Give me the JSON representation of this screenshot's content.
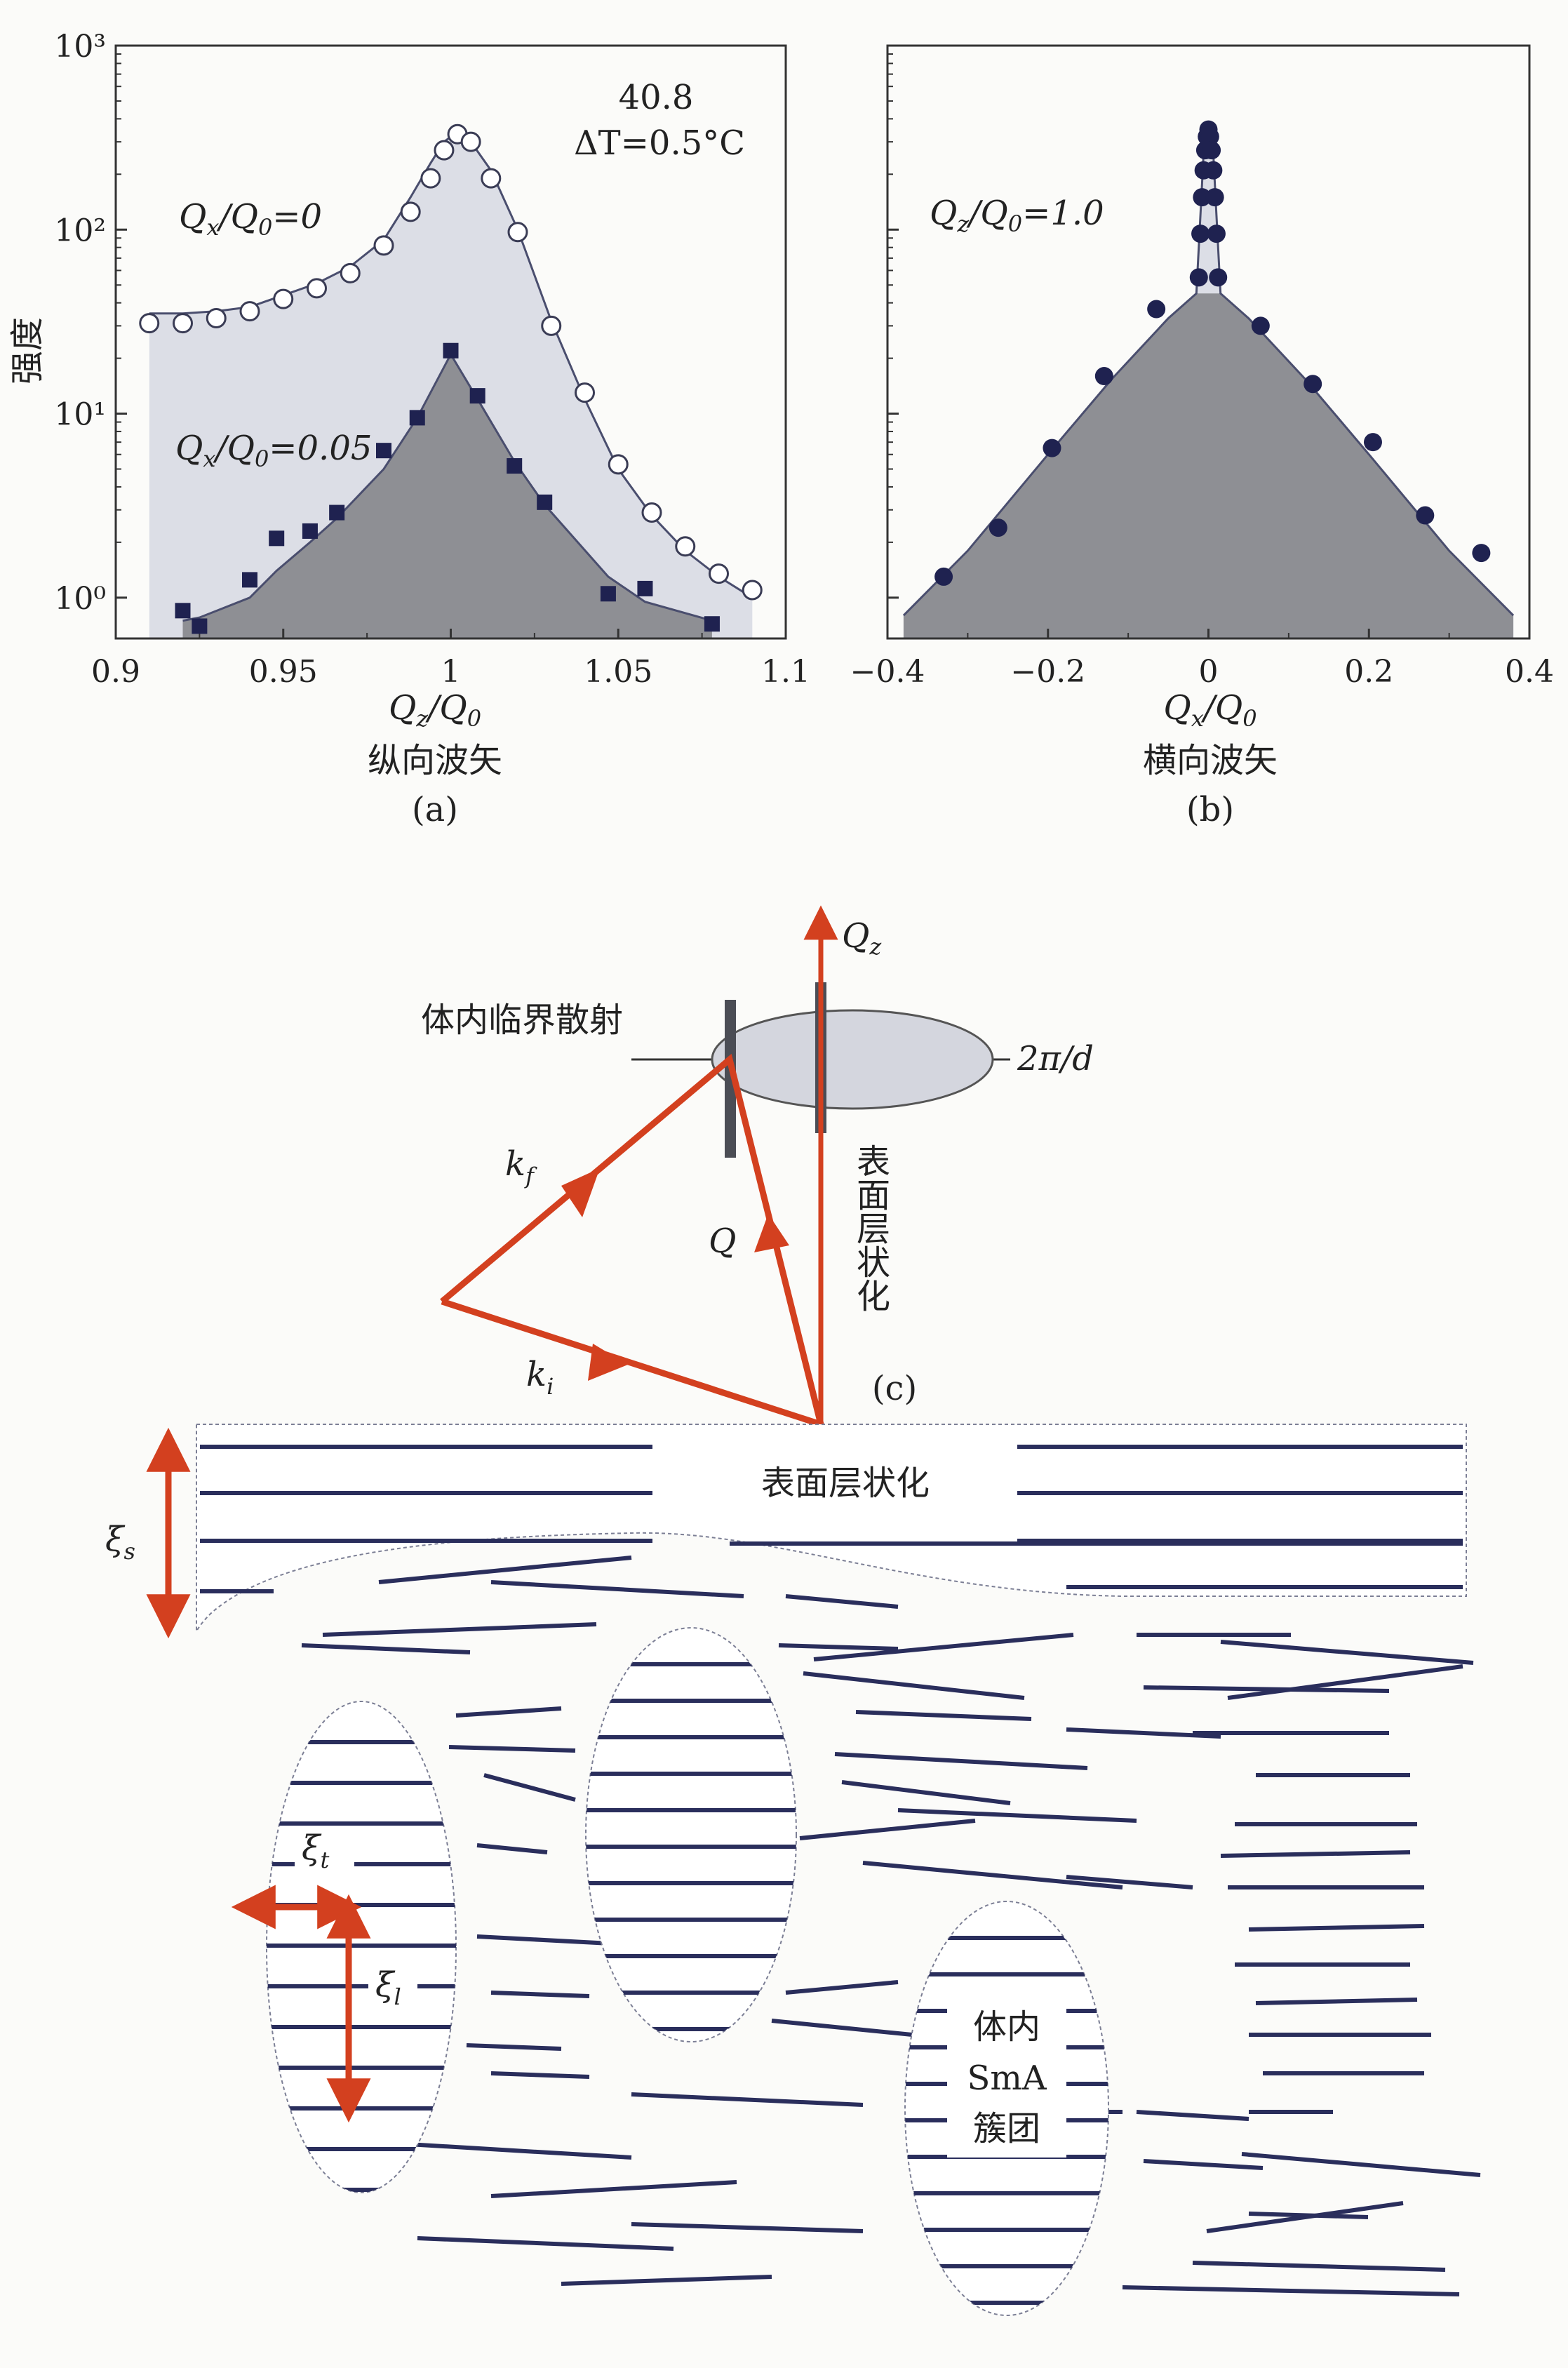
{
  "chart_data": [
    {
      "type": "scatter",
      "panel_label": "(a)",
      "xlabel_math": "Q_z/Q_0",
      "xlabel_text": "纵向波矢",
      "ylabel": "强度",
      "yscale": "log",
      "xlim": [
        0.9,
        1.1
      ],
      "ylim": [
        0.6,
        1000
      ],
      "x_ticks": [
        "0.9",
        "0.95",
        "1",
        "1.05",
        "1.1"
      ],
      "y_ticks": [
        "10⁰",
        "10¹",
        "10²",
        "10³"
      ],
      "annotation_line1": "40.8",
      "annotation_line2": "ΔT=0.5°C",
      "series": [
        {
          "name": "Qx/Q0=0",
          "label": "Qx/Q0=0",
          "marker": "open-circle",
          "x": [
            0.91,
            0.92,
            0.93,
            0.94,
            0.95,
            0.96,
            0.97,
            0.98,
            0.988,
            0.994,
            0.998,
            1.002,
            1.006,
            1.012,
            1.02,
            1.03,
            1.04,
            1.05,
            1.06,
            1.07,
            1.08,
            1.09
          ],
          "y": [
            31,
            31,
            33,
            36,
            42,
            48,
            58,
            82,
            125,
            190,
            270,
            330,
            300,
            190,
            97,
            30,
            13,
            5.3,
            2.9,
            1.9,
            1.35,
            1.1
          ],
          "fit_y": [
            35,
            35,
            36,
            38,
            44,
            51,
            63,
            88,
            150,
            230,
            300,
            340,
            300,
            210,
            100,
            32,
            12,
            5.0,
            2.8,
            1.8,
            1.3,
            1.0
          ]
        },
        {
          "name": "Qx/Q0=0.05",
          "label": "Qx/Q0=0.05",
          "marker": "filled-square",
          "x": [
            0.92,
            0.925,
            0.94,
            0.948,
            0.958,
            0.966,
            0.98,
            0.99,
            1.0,
            1.008,
            1.019,
            1.028,
            1.047,
            1.058,
            1.078
          ],
          "y": [
            0.85,
            0.7,
            1.25,
            2.1,
            2.3,
            2.9,
            6.3,
            9.5,
            22,
            12.5,
            5.2,
            3.3,
            1.05,
            1.12,
            0.72
          ],
          "fit_y": [
            0.75,
            0.78,
            1.0,
            1.4,
            2.0,
            2.7,
            5.0,
            9.5,
            21,
            12,
            5.5,
            3.2,
            1.3,
            0.95,
            0.75
          ]
        }
      ]
    },
    {
      "type": "scatter",
      "panel_label": "(b)",
      "xlabel_math": "Q_x/Q_0",
      "xlabel_text": "横向波矢",
      "yscale": "log",
      "xlim": [
        -0.4,
        0.4
      ],
      "ylim": [
        0.6,
        1000
      ],
      "x_ticks": [
        "−0.4",
        "−0.2",
        "0",
        "0.2",
        "0.4"
      ],
      "annotation": "Qz/Q0=1.0",
      "series": [
        {
          "name": "Qz/Q0=1.0",
          "marker": "filled-circle",
          "x": [
            -0.33,
            -0.262,
            -0.195,
            -0.13,
            -0.065,
            -0.012,
            -0.01,
            -0.008,
            -0.006,
            -0.004,
            -0.002,
            0.0,
            0.002,
            0.004,
            0.006,
            0.008,
            0.01,
            0.012,
            0.065,
            0.13,
            0.205,
            0.27,
            0.34
          ],
          "y": [
            1.3,
            2.4,
            6.5,
            16.0,
            37,
            55,
            95,
            150,
            210,
            270,
            320,
            350,
            320,
            270,
            210,
            150,
            95,
            55,
            30,
            14.5,
            7.0,
            2.8,
            1.75
          ],
          "fit_x": [
            -0.38,
            -0.3,
            -0.2,
            -0.12,
            -0.05,
            -0.015,
            -0.01,
            -0.006,
            -0.003,
            0.0,
            0.003,
            0.006,
            0.01,
            0.015,
            0.05,
            0.12,
            0.2,
            0.3,
            0.38
          ],
          "fit_y": [
            0.8,
            1.8,
            6.0,
            15.5,
            33,
            45,
            120,
            260,
            330,
            360,
            330,
            260,
            120,
            45,
            33,
            15.5,
            6.0,
            1.8,
            0.8
          ]
        }
      ]
    }
  ],
  "diagram": {
    "panel_label": "(c)",
    "qz_label": "Q_z",
    "two_pi_d_label": "2π/d",
    "critical_scattering_label": "体内临界散射",
    "surface_layering_vertical": "表面层状化",
    "surface_layering_label": "表面层状化",
    "kf_label": "k_f",
    "ki_label": "k_i",
    "q_label": "Q",
    "xi_s_label": "ξ_s",
    "xi_t_label": "ξ_t",
    "xi_l_label": "ξ_l",
    "cluster_label_line1": "体内",
    "cluster_label_line2": "SmA",
    "cluster_label_line3": "簇团",
    "colors": {
      "arrow": "#d3401f",
      "line": "#2a2e5c",
      "fill_light": "#dfe0e6",
      "fill_dark": "#8c8d92"
    }
  }
}
